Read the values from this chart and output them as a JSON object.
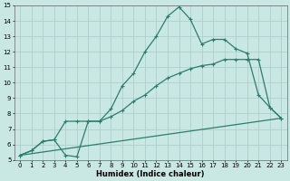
{
  "xlabel": "Humidex (Indice chaleur)",
  "xlim": [
    -0.5,
    23.5
  ],
  "ylim": [
    5,
    15
  ],
  "xticks": [
    0,
    1,
    2,
    3,
    4,
    5,
    6,
    7,
    8,
    9,
    10,
    11,
    12,
    13,
    14,
    15,
    16,
    17,
    18,
    19,
    20,
    21,
    22,
    23
  ],
  "yticks": [
    5,
    6,
    7,
    8,
    9,
    10,
    11,
    12,
    13,
    14,
    15
  ],
  "line_color": "#2d7d6b",
  "bg_color": "#c9e8e4",
  "grid_color": "#aecfcc",
  "line1_x": [
    0,
    1,
    2,
    3,
    4,
    5,
    6,
    7,
    8,
    9,
    10,
    11,
    12,
    13,
    14,
    15,
    16,
    17,
    18,
    19,
    20,
    21,
    22,
    23
  ],
  "line1_y": [
    5.3,
    5.6,
    6.2,
    6.3,
    5.3,
    5.2,
    7.5,
    7.5,
    8.3,
    9.8,
    10.6,
    12.0,
    13.0,
    14.3,
    14.9,
    14.1,
    12.5,
    12.8,
    12.8,
    12.2,
    11.9,
    9.2,
    8.4,
    7.7
  ],
  "line2_x": [
    0,
    1,
    2,
    3,
    4,
    5,
    6,
    7,
    8,
    9,
    10,
    11,
    12,
    13,
    14,
    15,
    16,
    17,
    18,
    19,
    20,
    21,
    22,
    23
  ],
  "line2_y": [
    5.3,
    5.6,
    6.2,
    6.3,
    7.5,
    7.5,
    7.5,
    7.5,
    7.8,
    8.2,
    8.8,
    9.2,
    9.8,
    10.3,
    10.6,
    10.9,
    11.1,
    11.2,
    11.5,
    11.5,
    11.5,
    11.5,
    8.4,
    7.7
  ],
  "line3_x": [
    0,
    23
  ],
  "line3_y": [
    5.3,
    7.7
  ]
}
